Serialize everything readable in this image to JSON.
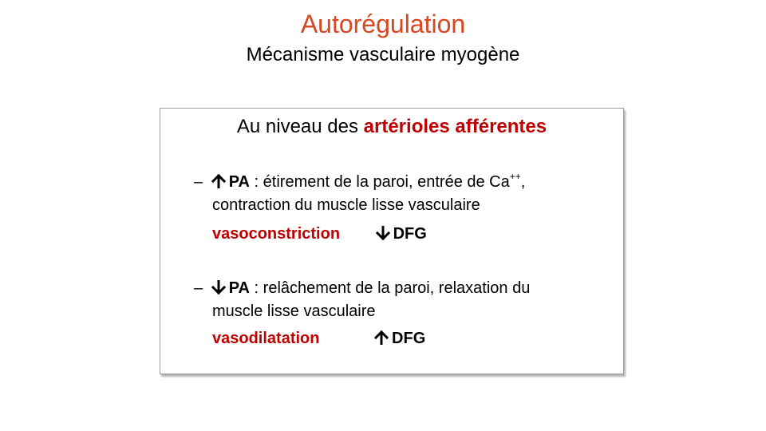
{
  "slide": {
    "title": "Autorégulation",
    "subtitle": "Mécanisme vasculaire myogène"
  },
  "box": {
    "heading_prefix": "Au niveau des ",
    "heading_highlight": "artérioles afférentes",
    "item1": {
      "dash": "–",
      "arrow_icon": "up-arrow-icon",
      "pa": "PA",
      "text_a": " : étirement de la paroi, entrée de Ca",
      "sup": "++",
      "text_b": ",",
      "text_line2": "contraction du muscle lisse vasculaire",
      "result": "vasoconstriction",
      "effect_icon": "down-arrow-icon",
      "effect": "DFG"
    },
    "item2": {
      "dash": "–",
      "arrow_icon": "down-arrow-icon",
      "pa": "PA",
      "text_a": " : relâchement de la paroi, relaxation du",
      "text_line2": "muscle lisse vasculaire",
      "result": "vasodilatation",
      "effect_icon": "up-arrow-icon",
      "effect": "DFG"
    }
  },
  "colors": {
    "title": "#d9461f",
    "highlight": "#c00000",
    "text": "#000000"
  }
}
